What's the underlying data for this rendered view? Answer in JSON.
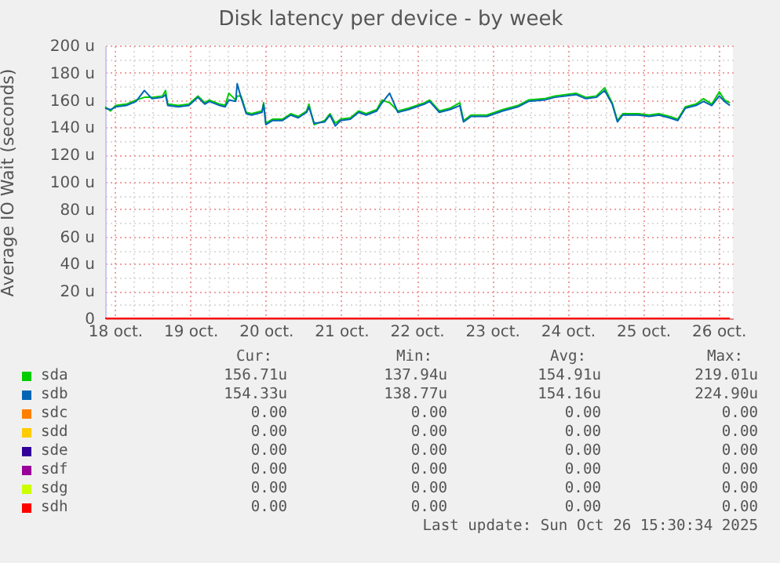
{
  "chart_data": {
    "type": "line",
    "title": "Disk latency per device - by week",
    "ylabel": "Average IO Wait (seconds)",
    "x": [
      "2025-10-17T20:53",
      "2025-10-17T22:34",
      "2025-10-18T00:14",
      "2025-10-18T03:36",
      "2025-10-18T06:43",
      "2025-10-18T09:22",
      "2025-10-18T11:46",
      "2025-10-18T15:07",
      "2025-10-18T16:05",
      "2025-10-18T16:48",
      "2025-10-18T20:10",
      "2025-10-18T23:31",
      "2025-10-19T02:24",
      "2025-10-19T04:34",
      "2025-10-19T06:00",
      "2025-10-19T09:22",
      "2025-10-19T11:02",
      "2025-10-19T12:14",
      "2025-10-19T14:24",
      "2025-10-19T14:53",
      "2025-10-19T16:05",
      "2025-10-19T17:46",
      "2025-10-19T19:26",
      "2025-10-19T22:48",
      "2025-10-19T23:17",
      "2025-10-20T00:00",
      "2025-10-20T02:10",
      "2025-10-20T05:17",
      "2025-10-20T07:55",
      "2025-10-20T10:19",
      "2025-10-20T12:58",
      "2025-10-20T13:41",
      "2025-10-20T15:22",
      "2025-10-20T18:43",
      "2025-10-20T20:24",
      "2025-10-20T22:05",
      "2025-10-20T23:46",
      "2025-10-21T02:53",
      "2025-10-21T05:31",
      "2025-10-21T07:55",
      "2025-10-21T11:17",
      "2025-10-21T12:58",
      "2025-10-21T15:22",
      "2025-10-21T18:00",
      "2025-10-21T21:22",
      "2025-10-22T02:24",
      "2025-10-22T04:05",
      "2025-10-22T07:12",
      "2025-10-22T10:34",
      "2025-10-22T13:41",
      "2025-10-22T14:53",
      "2025-10-22T17:17",
      "2025-10-22T22:19",
      "2025-10-23T03:22",
      "2025-10-23T08:10",
      "2025-10-23T11:31",
      "2025-10-23T16:34",
      "2025-10-23T19:55",
      "2025-10-24T02:38",
      "2025-10-24T05:46",
      "2025-10-24T09:07",
      "2025-10-24T11:46",
      "2025-10-24T14:10",
      "2025-10-24T15:50",
      "2025-10-24T17:31",
      "2025-10-24T22:34",
      "2025-10-25T01:55",
      "2025-10-25T05:02",
      "2025-10-25T08:24",
      "2025-10-25T11:02",
      "2025-10-25T13:26",
      "2025-10-25T16:48",
      "2025-10-25T19:12",
      "2025-10-25T21:50",
      "2025-10-26T00:14",
      "2025-10-26T01:55",
      "2025-10-26T03:36"
    ],
    "series": [
      {
        "name": "sda",
        "color": "#00cc00",
        "values": [
          155,
          152,
          156,
          157,
          160,
          162,
          162,
          163,
          167,
          157,
          156,
          157,
          163,
          158,
          160,
          157,
          156,
          165,
          160,
          163,
          163,
          151,
          150,
          152,
          158,
          143,
          146,
          146,
          150,
          148,
          152,
          157,
          142,
          145,
          150,
          143,
          146,
          147,
          152,
          150,
          153,
          160,
          158,
          152,
          154,
          158,
          160,
          152,
          154,
          158,
          145,
          149,
          149,
          153,
          156,
          160,
          161,
          163,
          165,
          162,
          163,
          169,
          158,
          145,
          150,
          150,
          149,
          150,
          148,
          146,
          155,
          157,
          161,
          157,
          166,
          160,
          158
        ]
      },
      {
        "name": "sdb",
        "color": "#0066b3",
        "values": [
          154,
          153,
          155,
          156,
          159,
          167,
          161,
          162,
          164,
          156,
          155,
          156,
          162,
          157,
          159,
          156,
          155,
          160,
          159,
          172,
          162,
          150,
          149,
          151,
          157,
          142,
          145,
          145,
          149,
          147,
          151,
          155,
          143,
          144,
          149,
          141,
          145,
          146,
          151,
          149,
          152,
          158,
          165,
          151,
          153,
          157,
          159,
          151,
          153,
          156,
          144,
          148,
          148,
          152,
          155,
          159,
          160,
          162,
          164,
          161,
          162,
          167,
          157,
          144,
          149,
          149,
          148,
          149,
          147,
          145,
          154,
          156,
          159,
          156,
          163,
          159,
          156
        ]
      },
      {
        "name": "sdc",
        "color": "#ff8000",
        "values": [
          null,
          null,
          null,
          null,
          null,
          null,
          null,
          null,
          null,
          null,
          null,
          null,
          null,
          null,
          null,
          null,
          null,
          null,
          null,
          null,
          null,
          null,
          null,
          null,
          null,
          null,
          null,
          null,
          null,
          null,
          null,
          null,
          null,
          null,
          null,
          null,
          null,
          null,
          null,
          null,
          null,
          null,
          null,
          null,
          null,
          null,
          null,
          null,
          null,
          null,
          null,
          null,
          null,
          null,
          null,
          null,
          null,
          null,
          null,
          null,
          null,
          null,
          null,
          null,
          null,
          null,
          null,
          null,
          null,
          null,
          null,
          null,
          null,
          null,
          null,
          null,
          null
        ]
      },
      {
        "name": "sdd",
        "color": "#ffcc00",
        "values": [
          null,
          null,
          null,
          null,
          null,
          null,
          null,
          null,
          null,
          null,
          null,
          null,
          null,
          null,
          null,
          null,
          null,
          null,
          null,
          null,
          null,
          null,
          null,
          null,
          null,
          null,
          null,
          null,
          null,
          null,
          null,
          null,
          null,
          null,
          null,
          null,
          null,
          null,
          null,
          null,
          null,
          null,
          null,
          null,
          null,
          null,
          null,
          null,
          null,
          null,
          null,
          null,
          null,
          null,
          null,
          null,
          null,
          null,
          null,
          null,
          null,
          null,
          null,
          null,
          null,
          null,
          null,
          null,
          null,
          null,
          null,
          null,
          null,
          null,
          null,
          null,
          null
        ]
      },
      {
        "name": "sde",
        "color": "#330099",
        "values": [
          null,
          null,
          null,
          null,
          null,
          null,
          null,
          null,
          null,
          null,
          null,
          null,
          null,
          null,
          null,
          null,
          null,
          null,
          null,
          null,
          null,
          null,
          null,
          null,
          null,
          null,
          null,
          null,
          null,
          null,
          null,
          null,
          null,
          null,
          null,
          null,
          null,
          null,
          null,
          null,
          null,
          null,
          null,
          null,
          null,
          null,
          null,
          null,
          null,
          null,
          null,
          null,
          null,
          null,
          null,
          null,
          null,
          null,
          null,
          null,
          null,
          null,
          null,
          null,
          null,
          null,
          null,
          null,
          null,
          null,
          null,
          null,
          null,
          null,
          null,
          null,
          null
        ]
      },
      {
        "name": "sdf",
        "color": "#990099",
        "values": [
          null,
          null,
          null,
          null,
          null,
          null,
          null,
          null,
          null,
          null,
          null,
          null,
          null,
          null,
          null,
          null,
          null,
          null,
          null,
          null,
          null,
          null,
          null,
          null,
          null,
          null,
          null,
          null,
          null,
          null,
          null,
          null,
          null,
          null,
          null,
          null,
          null,
          null,
          null,
          null,
          null,
          null,
          null,
          null,
          null,
          null,
          null,
          null,
          null,
          null,
          null,
          null,
          null,
          null,
          null,
          null,
          null,
          null,
          null,
          null,
          null,
          null,
          null,
          null,
          null,
          null,
          null,
          null,
          null,
          null,
          null,
          null,
          null,
          null,
          null,
          null,
          null
        ]
      },
      {
        "name": "sdg",
        "color": "#ccff00",
        "values": [
          null,
          null,
          null,
          null,
          null,
          null,
          null,
          null,
          null,
          null,
          null,
          null,
          null,
          null,
          null,
          null,
          null,
          null,
          null,
          null,
          null,
          null,
          null,
          null,
          null,
          null,
          null,
          null,
          null,
          null,
          null,
          null,
          null,
          null,
          null,
          null,
          null,
          null,
          null,
          null,
          null,
          null,
          null,
          null,
          null,
          null,
          null,
          null,
          null,
          null,
          null,
          null,
          null,
          null,
          null,
          null,
          null,
          null,
          null,
          null,
          null,
          null,
          null,
          null,
          null,
          null,
          null,
          null,
          null,
          null,
          null,
          null,
          null,
          null,
          null,
          null,
          null
        ]
      },
      {
        "name": "sdh",
        "color": "#ff0000",
        "x": [
          "2025-10-17T20:53",
          "2025-10-26T03:36"
        ],
        "values": [
          0,
          0
        ]
      }
    ],
    "xlim": [
      "2025-10-17T20:53",
      "2025-10-26T04:34"
    ],
    "xticks": [
      {
        "value": "2025-10-18T00:00",
        "label": "18 oct."
      },
      {
        "value": "2025-10-18T06:00",
        "label": null
      },
      {
        "value": "2025-10-18T12:00",
        "label": null
      },
      {
        "value": "2025-10-18T18:00",
        "label": null
      },
      {
        "value": "2025-10-19T00:00",
        "label": "19 oct."
      },
      {
        "value": "2025-10-19T06:00",
        "label": null
      },
      {
        "value": "2025-10-19T12:00",
        "label": null
      },
      {
        "value": "2025-10-19T18:00",
        "label": null
      },
      {
        "value": "2025-10-20T00:00",
        "label": "20 oct."
      },
      {
        "value": "2025-10-20T06:00",
        "label": null
      },
      {
        "value": "2025-10-20T12:00",
        "label": null
      },
      {
        "value": "2025-10-20T18:00",
        "label": null
      },
      {
        "value": "2025-10-21T00:00",
        "label": "21 oct."
      },
      {
        "value": "2025-10-21T06:00",
        "label": null
      },
      {
        "value": "2025-10-21T12:00",
        "label": null
      },
      {
        "value": "2025-10-21T18:00",
        "label": null
      },
      {
        "value": "2025-10-22T00:00",
        "label": "22 oct."
      },
      {
        "value": "2025-10-22T06:00",
        "label": null
      },
      {
        "value": "2025-10-22T12:00",
        "label": null
      },
      {
        "value": "2025-10-22T18:00",
        "label": null
      },
      {
        "value": "2025-10-23T00:00",
        "label": "23 oct."
      },
      {
        "value": "2025-10-23T06:00",
        "label": null
      },
      {
        "value": "2025-10-23T12:00",
        "label": null
      },
      {
        "value": "2025-10-23T18:00",
        "label": null
      },
      {
        "value": "2025-10-24T00:00",
        "label": "24 oct."
      },
      {
        "value": "2025-10-24T06:00",
        "label": null
      },
      {
        "value": "2025-10-24T12:00",
        "label": null
      },
      {
        "value": "2025-10-24T18:00",
        "label": null
      },
      {
        "value": "2025-10-25T00:00",
        "label": "25 oct."
      },
      {
        "value": "2025-10-25T06:00",
        "label": null
      },
      {
        "value": "2025-10-25T12:00",
        "label": null
      },
      {
        "value": "2025-10-25T18:00",
        "label": null
      },
      {
        "value": "2025-10-26T00:00",
        "label": "26 oct."
      }
    ],
    "ylim": [
      0,
      200
    ],
    "yticks": [
      0,
      {
        "value": 10,
        "label": null
      },
      {
        "value": 20,
        "label": "20 u"
      },
      {
        "value": 30,
        "label": null
      },
      {
        "value": 40,
        "label": "40 u"
      },
      {
        "value": 50,
        "label": null
      },
      {
        "value": 60,
        "label": "60 u"
      },
      {
        "value": 70,
        "label": null
      },
      {
        "value": 80,
        "label": "80 u"
      },
      {
        "value": 90,
        "label": null
      },
      {
        "value": 100,
        "label": "100 u"
      },
      {
        "value": 110,
        "label": null
      },
      {
        "value": 120,
        "label": "120 u"
      },
      {
        "value": 130,
        "label": null
      },
      {
        "value": 140,
        "label": "140 u"
      },
      {
        "value": 150,
        "label": null
      },
      {
        "value": 160,
        "label": "160 u"
      },
      {
        "value": 170,
        "label": null
      },
      {
        "value": 180,
        "label": "180 u"
      },
      {
        "value": 190,
        "label": null
      },
      {
        "value": 200,
        "label": "200 u"
      }
    ],
    "grid": true,
    "legend": "bottom",
    "line_style": "solid",
    "marker": "none",
    "annotations": [
      "Cur:",
      "Min:",
      "Avg:",
      "Max:",
      "156.71u",
      "137.94u",
      "154.91u",
      "219.01u",
      "154.33u",
      "138.77u",
      "154.16u",
      "224.90u",
      "0.00",
      "0.00",
      "0.00",
      "0.00",
      "0.00",
      "0.00",
      "0.00",
      "0.00",
      "0.00",
      "0.00",
      "0.00",
      "0.00",
      "0.00",
      "0.00",
      "0.00",
      "0.00",
      "0.00",
      "0.00",
      "0.00",
      "0.00",
      "0.00",
      "0.00",
      "0.00",
      "0.00",
      "Last update: Sun Oct 26 15:30:34 2025"
    ]
  }
}
